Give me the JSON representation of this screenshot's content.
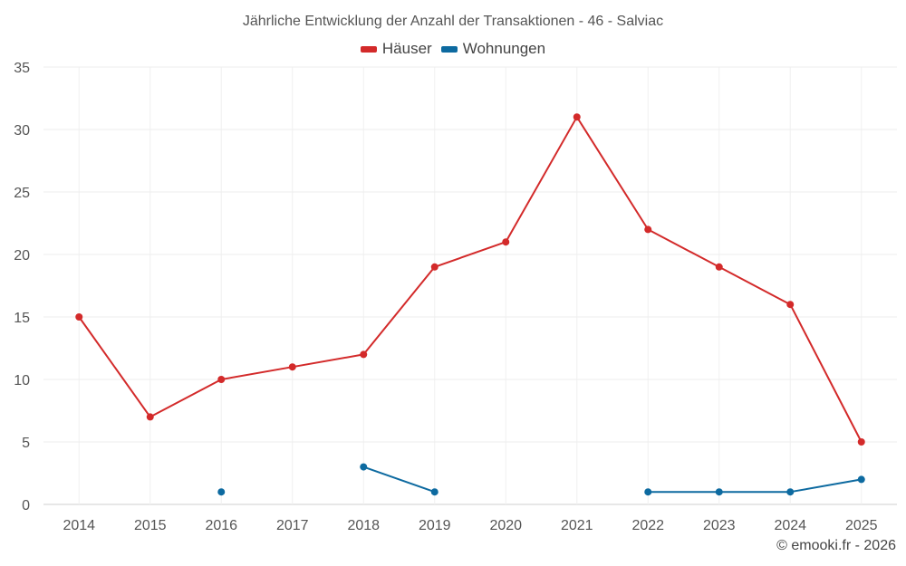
{
  "chart_data": {
    "type": "line",
    "title": "Jährliche Entwicklung der Anzahl der Transaktionen - 46 - Salviac",
    "categories": [
      "2014",
      "2015",
      "2016",
      "2017",
      "2018",
      "2019",
      "2020",
      "2021",
      "2022",
      "2023",
      "2024",
      "2025"
    ],
    "yticks": [
      0,
      5,
      10,
      15,
      20,
      25,
      30,
      35
    ],
    "ylim": [
      0,
      35
    ],
    "xlabel": "",
    "ylabel": "",
    "grid": true,
    "legend_position": "top-center",
    "series": [
      {
        "name": "Häuser",
        "color": "#d32a2a",
        "values": [
          15,
          7,
          10,
          11,
          12,
          19,
          21,
          31,
          22,
          19,
          16,
          5
        ]
      },
      {
        "name": "Wohnungen",
        "color": "#0d6aa0",
        "values": [
          null,
          null,
          1,
          null,
          3,
          1,
          null,
          null,
          1,
          1,
          1,
          2
        ]
      }
    ]
  },
  "credit": "© emooki.fr - 2026"
}
